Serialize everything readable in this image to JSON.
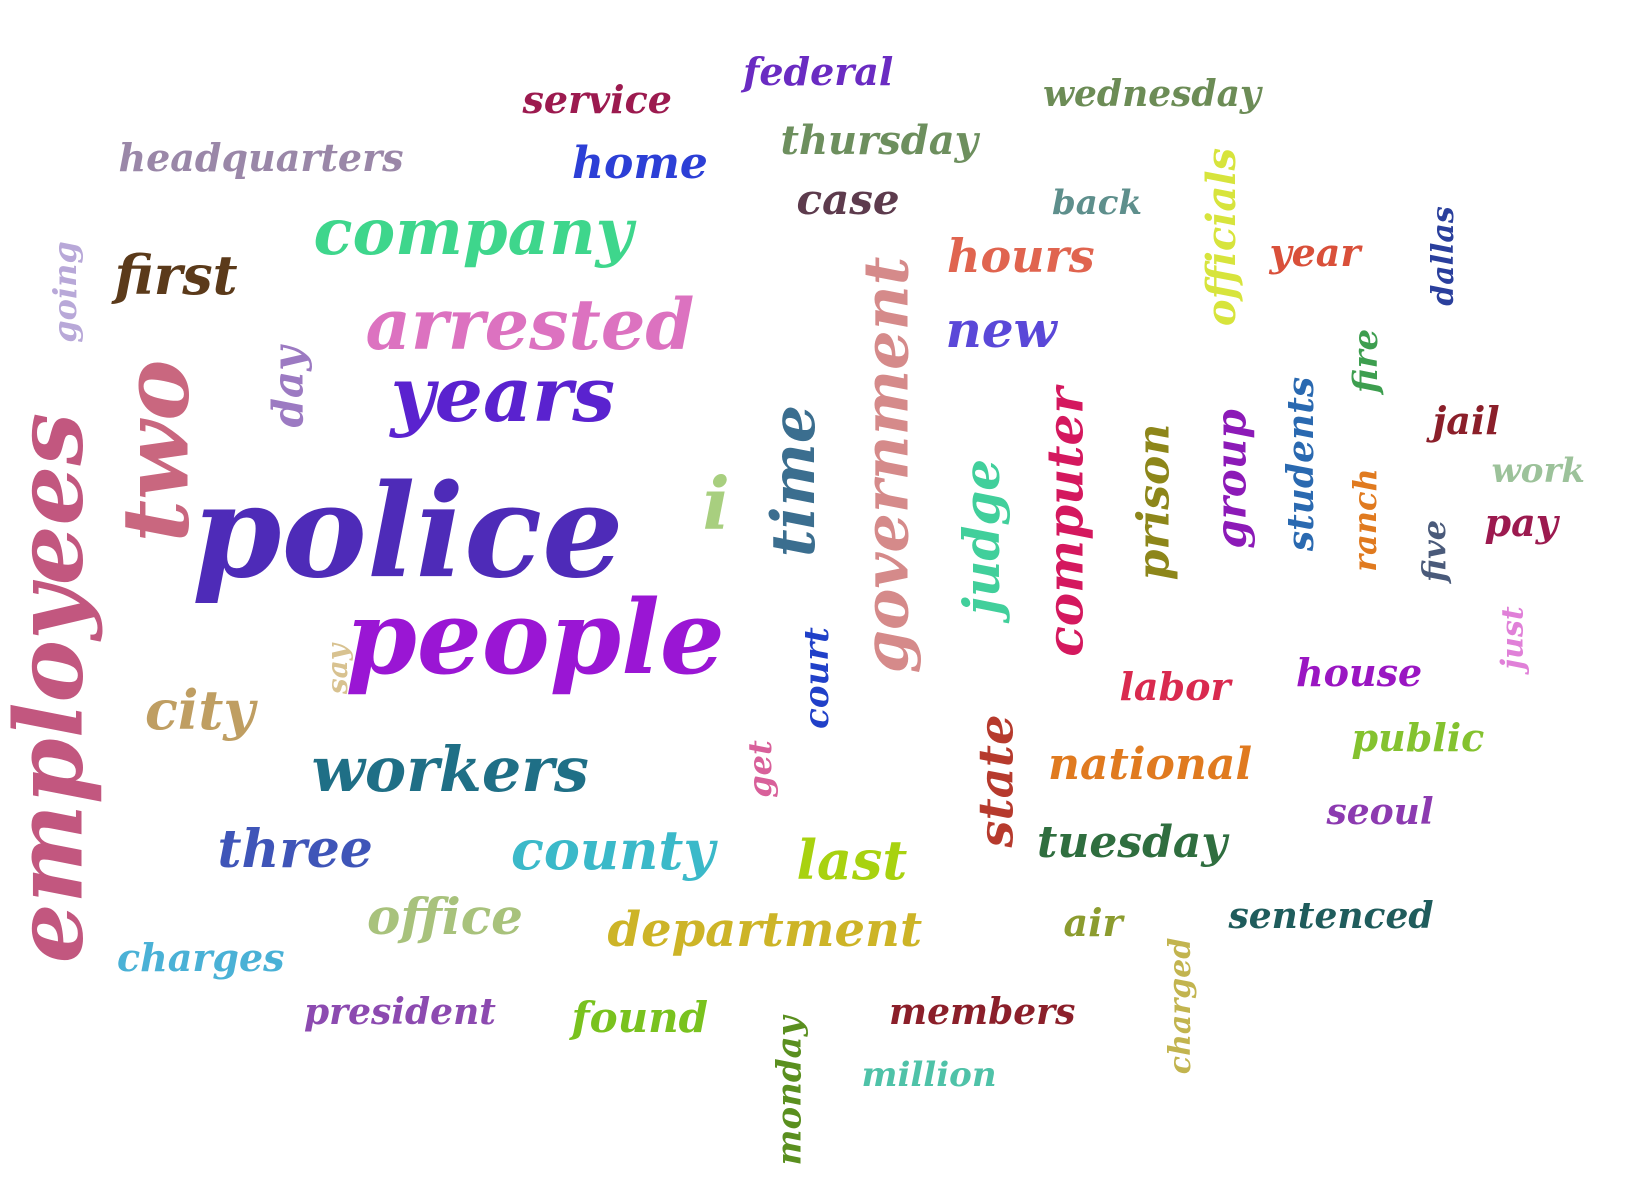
{
  "words": [
    {
      "text": "police",
      "color": "#4e2bb8"
    },
    {
      "text": "people",
      "color": "#9a16d4"
    },
    {
      "text": "employees",
      "color": "#c2577f"
    },
    {
      "text": "two",
      "color": "#c9677f"
    },
    {
      "text": "years",
      "color": "#5a22cf"
    },
    {
      "text": "arrested",
      "color": "#dc72c0"
    },
    {
      "text": "company",
      "color": "#3ed68c"
    },
    {
      "text": "government",
      "color": "#d58a8a"
    },
    {
      "text": "workers",
      "color": "#1f6f86"
    },
    {
      "text": "time",
      "color": "#3b6e8f"
    },
    {
      "text": "department",
      "color": "#cdb427"
    },
    {
      "text": "county",
      "color": "#3bb9c9"
    },
    {
      "text": "computer",
      "color": "#d4185e"
    },
    {
      "text": "judge",
      "color": "#41cf9b"
    },
    {
      "text": "city",
      "color": "#bf9e62"
    },
    {
      "text": "three",
      "color": "#3f55b8"
    },
    {
      "text": "state",
      "color": "#b63a2d"
    },
    {
      "text": "last",
      "color": "#a8d20f"
    },
    {
      "text": "office",
      "color": "#a8c27c"
    },
    {
      "text": "first",
      "color": "#5b3a1a"
    },
    {
      "text": "national",
      "color": "#e07a1f"
    },
    {
      "text": "tuesday",
      "color": "#2f6e3f"
    },
    {
      "text": "prison",
      "color": "#8d861a"
    },
    {
      "text": "hours",
      "color": "#e0644f"
    },
    {
      "text": "new",
      "color": "#5a48d8"
    },
    {
      "text": "group",
      "color": "#8c1ab7"
    },
    {
      "text": "headquarters",
      "color": "#9a87a8"
    },
    {
      "text": "thursday",
      "color": "#6d8f5e"
    },
    {
      "text": "day",
      "color": "#9c7ac2"
    },
    {
      "text": "officials",
      "color": "#d7e43c"
    },
    {
      "text": "home",
      "color": "#2c3fd6"
    },
    {
      "text": "charges",
      "color": "#4ab1d6"
    },
    {
      "text": "students",
      "color": "#2a69b0"
    },
    {
      "text": "wednesday",
      "color": "#6c8c56"
    },
    {
      "text": "case",
      "color": "#5d3b4d"
    },
    {
      "text": "members",
      "color": "#8b1f2a"
    },
    {
      "text": "labor",
      "color": "#d92a4f"
    },
    {
      "text": "house",
      "color": "#9a16c2"
    },
    {
      "text": "public",
      "color": "#84c22f"
    },
    {
      "text": "federal",
      "color": "#6a2bc2"
    },
    {
      "text": "found",
      "color": "#79c21e"
    },
    {
      "text": "president",
      "color": "#8c4ab0"
    },
    {
      "text": "sentenced",
      "color": "#1f5c5c"
    },
    {
      "text": "monday",
      "color": "#5a8f1f"
    },
    {
      "text": "ranch",
      "color": "#e07a1f"
    },
    {
      "text": "charged",
      "color": "#c2b44f"
    },
    {
      "text": "service",
      "color": "#9c1a4f"
    },
    {
      "text": "million",
      "color": "#4fc2a8"
    },
    {
      "text": "seoul",
      "color": "#8c3ab0"
    },
    {
      "text": "five",
      "color": "#4a5a7a"
    },
    {
      "text": "i",
      "color": "#a8cf7f"
    },
    {
      "text": "court",
      "color": "#2040c8"
    },
    {
      "text": "jail",
      "color": "#8b1f2a"
    },
    {
      "text": "dallas",
      "color": "#2a3f9c"
    },
    {
      "text": "pay",
      "color": "#9c1a4f"
    },
    {
      "text": "fire",
      "color": "#3d9e4f"
    },
    {
      "text": "air",
      "color": "#8c9c2f"
    },
    {
      "text": "year",
      "color": "#d9503a"
    },
    {
      "text": "going",
      "color": "#b8a8d8"
    },
    {
      "text": "back",
      "color": "#5e8f8c"
    },
    {
      "text": "get",
      "color": "#d8609a"
    },
    {
      "text": "work",
      "color": "#9cc29a"
    },
    {
      "text": "just",
      "color": "#e080d8"
    },
    {
      "text": "say",
      "color": "#d8c290"
    }
  ]
}
